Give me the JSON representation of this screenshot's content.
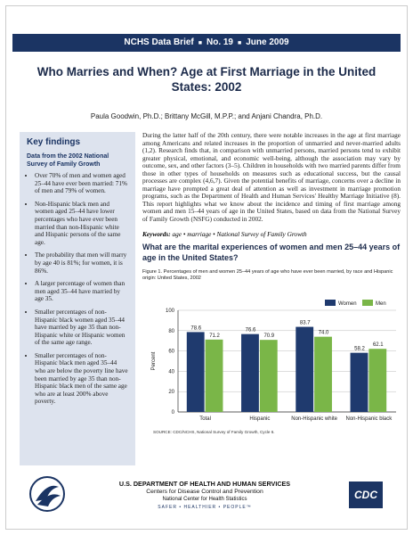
{
  "header": {
    "series": "NCHS Data Brief",
    "number": "No. 19",
    "date": "June 2009"
  },
  "title": "Who Marries and When? Age at First Marriage in the United States: 2002",
  "authors": "Paula Goodwin, Ph.D.; Brittany McGill, M.P.P.; and Anjani Chandra, Ph.D.",
  "key_findings": {
    "heading": "Key findings",
    "subheading": "Data from the 2002 National Survey of Family Growth",
    "bullets": [
      "Over 70% of men and women aged 25–44 have ever been married: 71% of men and 79% of women.",
      "Non-Hispanic black men and women aged 25–44 have lower percentages who have ever been married than non-Hispanic white and Hispanic persons of the same age.",
      "The probability that men will marry by age 40 is 81%; for women, it is 86%.",
      "A larger percentage of women than men aged 35–44 have married by age 35.",
      "Smaller percentages of non-Hispanic black women aged 35–44 have married by age 35 than non-Hispanic white or Hispanic women of the same age range.",
      "Smaller percentages of non-Hispanic black men aged 35–44 who are below the poverty line have been married by age 35 than non-Hispanic black men of the same age who are at least 200% above poverty."
    ]
  },
  "body": {
    "paragraph": "During the latter half of the 20th century, there were notable increases in the age at first marriage among Americans and related increases in the proportion of unmarried and never-married adults (1,2). Research finds that, in comparison with unmarried persons, married persons tend to exhibit greater physical, emotional, and economic well-being, although the association may vary by outcome, sex, and other factors (3–5). Children in households with two married parents differ from those in other types of households on measures such as educational success, but the causal processes are complex (4,6,7). Given the potential benefits of marriage, concerns over a decline in marriage have prompted a great deal of attention as well as investment in marriage promotion programs, such as the Department of Health and Human Services' Healthy Marriage Initiative (8). This report highlights what we know about the incidence and timing of first marriage among women and men 15–44 years of age in the United States, based on data from the National Survey of Family Growth (NSFG) conducted in 2002.",
    "keywords_label": "Keywords:",
    "keywords": "age • marriage • National Survey of Family Growth"
  },
  "section_heading": "What are the marital experiences of women and men 25–44 years of age in the United States?",
  "figure": {
    "caption": "Figure 1. Percentages of men and women 25–44 years of age who have ever been married, by race and Hispanic origin: United States, 2002",
    "source": "SOURCE: CDC/NCHS, National Survey of Family Growth, Cycle 6."
  },
  "chart_data": {
    "type": "bar",
    "y_label": "Percent",
    "categories": [
      "Total",
      "Hispanic",
      "Non-Hispanic white",
      "Non-Hispanic black"
    ],
    "series": [
      {
        "name": "Women",
        "color": "#1f3a6e",
        "values": [
          78.6,
          76.6,
          83.7,
          58.2
        ]
      },
      {
        "name": "Men",
        "color": "#7ab648",
        "values": [
          71.2,
          70.9,
          74.0,
          62.1
        ],
        "value_labels": [
          "71.2",
          "70.9",
          "74.0",
          "62.1"
        ]
      }
    ],
    "ylim": [
      0,
      100
    ],
    "yticks": [
      0,
      20,
      40,
      60,
      80,
      100
    ],
    "grid": true,
    "legend": "top-right"
  },
  "footer": {
    "department": "U.S. DEPARTMENT OF HEALTH AND HUMAN SERVICES",
    "agency": "Centers for Disease Control and Prevention",
    "center": "National Center for Health Statistics",
    "slogan": "SAFER • HEALTHIER • PEOPLE™",
    "logo": "CDC"
  }
}
